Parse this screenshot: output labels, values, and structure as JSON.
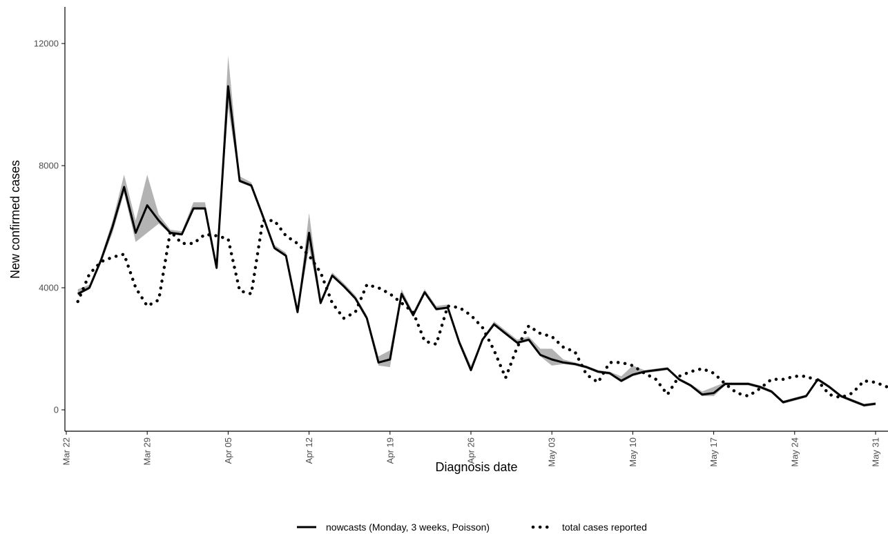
{
  "chart_data": {
    "type": "line",
    "title": "",
    "xlabel": "Diagnosis date",
    "ylabel": "New confirmed cases",
    "x_start": "2020-03-23",
    "xlim": [
      "2020-03-22",
      "2020-05-31"
    ],
    "ylim": [
      -700,
      13200
    ],
    "yticks": [
      0,
      4000,
      8000,
      12000
    ],
    "xticks": [
      {
        "date": "2020-03-22",
        "label": "Mar 22"
      },
      {
        "date": "2020-03-29",
        "label": "Mar 29"
      },
      {
        "date": "2020-04-05",
        "label": "Apr 05"
      },
      {
        "date": "2020-04-12",
        "label": "Apr 12"
      },
      {
        "date": "2020-04-19",
        "label": "Apr 19"
      },
      {
        "date": "2020-04-26",
        "label": "Apr 26"
      },
      {
        "date": "2020-05-03",
        "label": "May 03"
      },
      {
        "date": "2020-05-10",
        "label": "May 10"
      },
      {
        "date": "2020-05-17",
        "label": "May 17"
      },
      {
        "date": "2020-05-24",
        "label": "May 24"
      },
      {
        "date": "2020-05-31",
        "label": "May 31"
      }
    ],
    "grid": false,
    "legend_position": "bottom",
    "series": [
      {
        "name": "nowcasts (Monday, 3 weeks, Poisson)",
        "style": "solid",
        "values": [
          3800,
          4000,
          4900,
          6000,
          7300,
          5800,
          6700,
          6200,
          5800,
          5750,
          6600,
          6600,
          4650,
          10600,
          7500,
          7350,
          6350,
          5300,
          5050,
          3200,
          5800,
          3500,
          4400,
          4050,
          3650,
          3000,
          1550,
          1650,
          3800,
          3100,
          3850,
          3300,
          3350,
          2200,
          1300,
          2300,
          2800,
          2500,
          2200,
          2300,
          1800,
          1650,
          1550,
          1500,
          1400,
          1250,
          1200,
          950,
          1150,
          1250,
          1300,
          1350,
          1000,
          800,
          500,
          550,
          850,
          850,
          850,
          750,
          600,
          250,
          350,
          450,
          1000,
          750,
          450,
          300,
          150,
          200
        ],
        "ci_lower": [
          3750,
          3950,
          4800,
          5800,
          7100,
          5500,
          5800,
          6100,
          5750,
          5700,
          6550,
          6550,
          4600,
          9900,
          7450,
          7300,
          6300,
          5250,
          5000,
          3150,
          5300,
          3450,
          4350,
          4000,
          3600,
          2950,
          1450,
          1400,
          3700,
          3050,
          3800,
          3250,
          3300,
          2150,
          1250,
          2250,
          2750,
          2450,
          2150,
          2250,
          1750,
          1450,
          1500,
          1450,
          1350,
          1200,
          1150,
          900,
          1100,
          1200,
          1250,
          1300,
          950,
          750,
          450,
          450,
          800,
          800,
          800,
          700,
          550,
          200,
          300,
          400,
          950,
          700,
          400,
          250,
          100,
          150
        ],
        "ci_upper": [
          3950,
          4100,
          5000,
          6200,
          7700,
          6200,
          7700,
          6400,
          5900,
          5850,
          6800,
          6800,
          4750,
          11600,
          7650,
          7450,
          6450,
          5400,
          5150,
          3300,
          6450,
          3600,
          4500,
          4150,
          3750,
          3100,
          1750,
          1950,
          3950,
          3200,
          3950,
          3400,
          3450,
          2300,
          1450,
          2350,
          2900,
          2600,
          2300,
          2400,
          2000,
          2000,
          1650,
          1550,
          1450,
          1300,
          1250,
          1100,
          1450,
          1300,
          1350,
          1400,
          1050,
          850,
          600,
          750,
          900,
          900,
          900,
          800,
          650,
          300,
          400,
          500,
          1050,
          800,
          500,
          350,
          200,
          250
        ]
      },
      {
        "name": "total cases reported",
        "style": "dotted",
        "values": [
          3550,
          4450,
          4850,
          5000,
          5100,
          4000,
          3400,
          3600,
          5850,
          5450,
          5450,
          5750,
          5700,
          5600,
          3900,
          3800,
          6200,
          6200,
          5700,
          5450,
          5050,
          4500,
          3500,
          3000,
          3200,
          4100,
          4000,
          3800,
          3500,
          3200,
          2250,
          2150,
          3400,
          3350,
          3100,
          2700,
          1950,
          1050,
          2050,
          2750,
          2500,
          2400,
          2050,
          1900,
          1150,
          900,
          1550,
          1550,
          1450,
          1200,
          1000,
          500,
          1100,
          1250,
          1350,
          1200,
          850,
          550,
          450,
          700,
          1000,
          1000,
          1100,
          1100,
          950,
          500,
          400,
          550,
          950,
          900,
          750,
          650,
          550,
          300
        ]
      }
    ]
  }
}
